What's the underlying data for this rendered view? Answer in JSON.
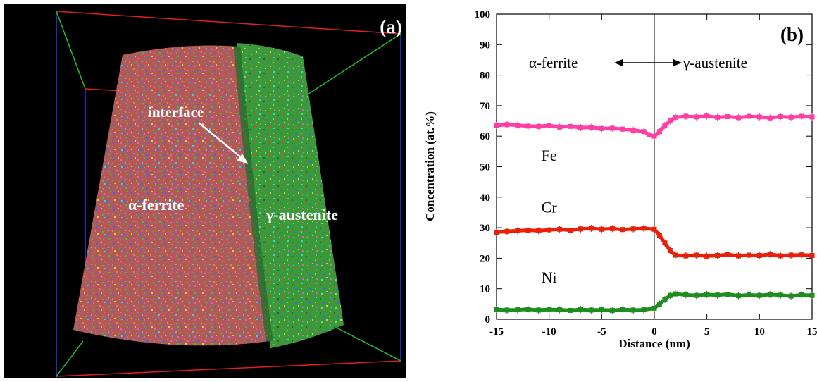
{
  "panel_a": {
    "panel_label": "(a)",
    "label_interface": "interface",
    "label_ferrite": "α-ferrite",
    "label_austenite": "γ-austenite",
    "colors": {
      "background": "#000000",
      "box_red": "#e02020",
      "box_green": "#20c020",
      "box_blue": "#2040ff",
      "ferrite_tone": "#c06060",
      "austenite_tone": "#3aa040"
    }
  },
  "chart_data": {
    "type": "line",
    "panel_label": "(b)",
    "xlabel": "Distance (nm)",
    "ylabel": "Concentration (at.%)",
    "xlim": [
      -15,
      15
    ],
    "ylim": [
      0,
      100
    ],
    "xticks": [
      -15,
      -10,
      -5,
      0,
      5,
      10,
      15
    ],
    "yticks": [
      0,
      10,
      20,
      30,
      40,
      50,
      60,
      70,
      80,
      90,
      100
    ],
    "vline_x": 0,
    "annotation_left": "α-ferrite",
    "annotation_right": "γ-austenite",
    "grid": false,
    "series": [
      {
        "name": "Fe",
        "color": "#ff3fa4",
        "x": [
          -15,
          -14,
          -13,
          -12,
          -11,
          -10,
          -9,
          -8,
          -7,
          -6,
          -5,
          -4,
          -3,
          -2,
          -1,
          -0.5,
          0,
          0.5,
          1,
          1.5,
          2,
          3,
          4,
          5,
          6,
          7,
          8,
          9,
          10,
          11,
          12,
          13,
          14,
          15
        ],
        "y": [
          63.5,
          63.8,
          63.6,
          63.3,
          63.2,
          63.5,
          63.0,
          63.2,
          62.8,
          62.9,
          62.5,
          62.6,
          62.3,
          62.0,
          61.5,
          60.5,
          60.0,
          61.5,
          63.5,
          65.0,
          66.2,
          66.5,
          66.3,
          66.6,
          66.2,
          66.4,
          66.1,
          66.5,
          66.3,
          66.0,
          66.4,
          66.2,
          66.5,
          66.3
        ]
      },
      {
        "name": "Cr",
        "color": "#e8200a",
        "x": [
          -15,
          -14,
          -13,
          -12,
          -11,
          -10,
          -9,
          -8,
          -7,
          -6,
          -5,
          -4,
          -3,
          -2,
          -1,
          0,
          0.5,
          1,
          1.5,
          2,
          3,
          4,
          5,
          6,
          7,
          8,
          9,
          10,
          11,
          12,
          13,
          14,
          15
        ],
        "y": [
          28.5,
          28.8,
          29.0,
          29.2,
          29.0,
          29.3,
          29.5,
          29.2,
          29.6,
          29.8,
          29.5,
          29.7,
          29.4,
          29.6,
          29.8,
          29.5,
          27.5,
          25.0,
          22.5,
          21.0,
          20.8,
          21.0,
          20.7,
          20.9,
          21.2,
          20.8,
          21.0,
          20.9,
          21.3,
          20.8,
          21.0,
          21.1,
          20.9
        ]
      },
      {
        "name": "Ni",
        "color": "#1e8c1e",
        "x": [
          -15,
          -14,
          -13,
          -12,
          -11,
          -10,
          -9,
          -8,
          -7,
          -6,
          -5,
          -4,
          -3,
          -2,
          -1,
          0,
          0.5,
          1,
          1.5,
          2,
          3,
          4,
          5,
          6,
          7,
          8,
          9,
          10,
          11,
          12,
          13,
          14,
          15
        ],
        "y": [
          3.2,
          3.0,
          3.1,
          3.3,
          3.0,
          3.2,
          3.1,
          2.9,
          3.2,
          3.0,
          3.1,
          2.9,
          3.2,
          3.0,
          3.1,
          3.6,
          5.0,
          6.5,
          7.8,
          8.3,
          8.0,
          7.8,
          8.1,
          7.9,
          8.2,
          7.7,
          8.0,
          7.8,
          8.1,
          7.9,
          7.6,
          8.0,
          7.8
        ]
      }
    ],
    "series_labels": [
      {
        "name": "Fe",
        "text": "Fe",
        "x": -10,
        "y": 52
      },
      {
        "name": "Cr",
        "text": "Cr",
        "x": -10,
        "y": 35
      },
      {
        "name": "Ni",
        "text": "Ni",
        "x": -10,
        "y": 12
      }
    ]
  }
}
